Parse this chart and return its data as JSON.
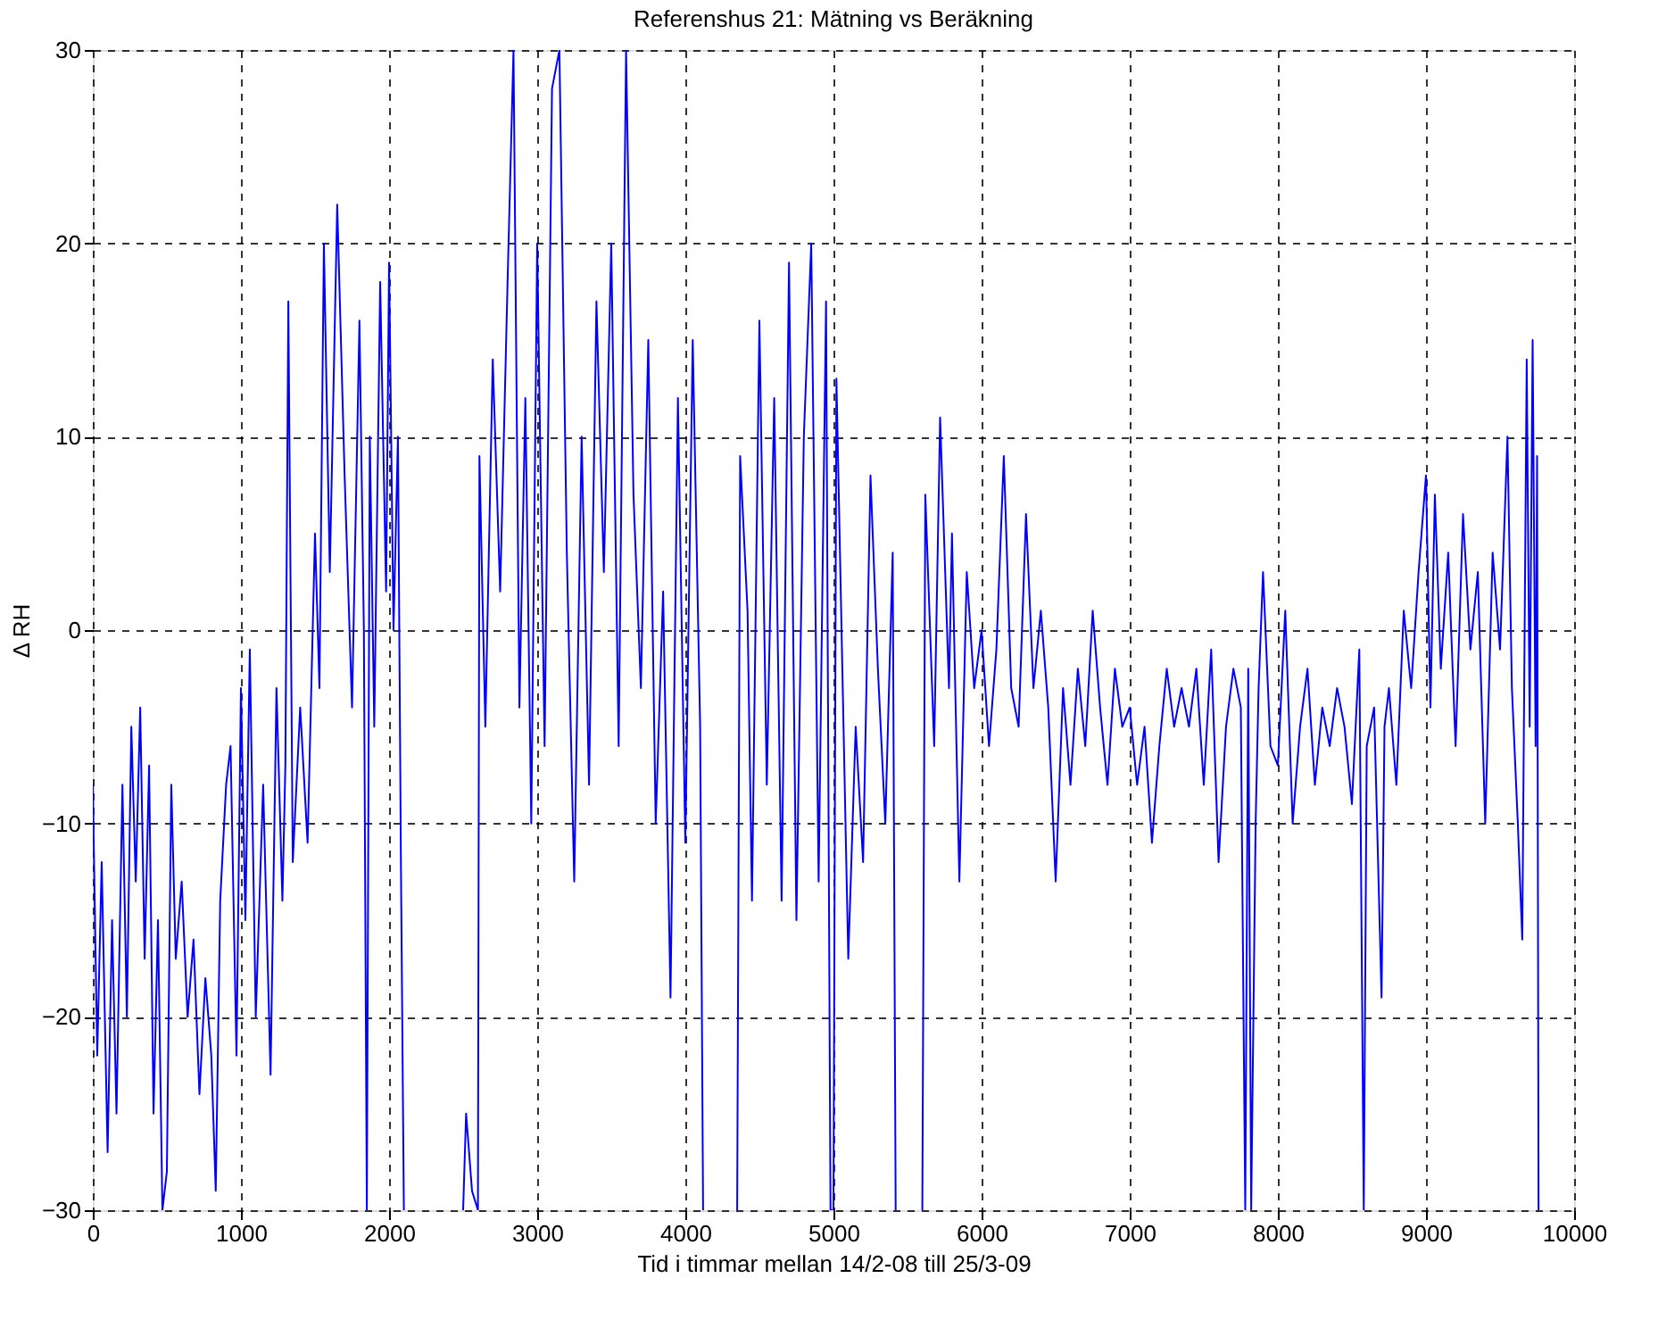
{
  "chart_data": {
    "type": "line",
    "title": "Referenshus 21: Mätning vs Beräkning",
    "xlabel": "Tid i timmar mellan 14/2-08 till 25/3-09",
    "ylabel": "Δ RH",
    "xlim": [
      0,
      10000
    ],
    "xticks": [
      0,
      1000,
      2000,
      3000,
      4000,
      5000,
      6000,
      7000,
      8000,
      9000,
      10000
    ],
    "ylim": [
      -30,
      30
    ],
    "yticks": [
      -30,
      -20,
      -10,
      0,
      10,
      20,
      30
    ],
    "grid": true,
    "line_style": "solid",
    "marker": "none",
    "series": [
      {
        "color": "#0000ff",
        "x": [
          0,
          30,
          60,
          100,
          130,
          160,
          200,
          230,
          260,
          290,
          320,
          350,
          380,
          410,
          440,
          470,
          500,
          530,
          560,
          600,
          640,
          680,
          720,
          760,
          800,
          830,
          860,
          900,
          930,
          970,
          1000,
          1030,
          1060,
          1100,
          1150,
          1200,
          1240,
          1280,
          1300,
          1320,
          1350,
          1400,
          1450,
          1500,
          1530,
          1560,
          1600,
          1650,
          1700,
          1750,
          1800,
          1830,
          1850,
          1870,
          1900,
          1940,
          1980,
          2000,
          2030,
          2060,
          2080,
          2100,
          2200,
          2500,
          2520,
          2560,
          2600,
          2610,
          2650,
          2700,
          2750,
          2800,
          2840,
          2880,
          2920,
          2960,
          3000,
          3050,
          3100,
          3150,
          3200,
          3250,
          3300,
          3350,
          3400,
          3450,
          3500,
          3550,
          3600,
          3650,
          3700,
          3750,
          3800,
          3850,
          3900,
          3950,
          4000,
          4050,
          4100,
          4120,
          4200,
          4350,
          4370,
          4420,
          4450,
          4500,
          4550,
          4600,
          4650,
          4700,
          4750,
          4800,
          4850,
          4900,
          4950,
          4980,
          5000,
          5020,
          5060,
          5100,
          5150,
          5200,
          5250,
          5300,
          5350,
          5400,
          5420,
          5500,
          5600,
          5620,
          5680,
          5720,
          5780,
          5800,
          5850,
          5900,
          5950,
          6000,
          6050,
          6100,
          6150,
          6200,
          6250,
          6300,
          6350,
          6400,
          6450,
          6500,
          6550,
          6600,
          6650,
          6700,
          6750,
          6800,
          6850,
          6900,
          6950,
          7000,
          7050,
          7100,
          7150,
          7200,
          7250,
          7300,
          7350,
          7400,
          7450,
          7500,
          7550,
          7600,
          7650,
          7700,
          7750,
          7780,
          7800,
          7820,
          7850,
          7870,
          7900,
          7950,
          8000,
          8050,
          8100,
          8150,
          8200,
          8250,
          8300,
          8350,
          8400,
          8450,
          8500,
          8550,
          8580,
          8600,
          8650,
          8700,
          8720,
          8750,
          8800,
          8850,
          8900,
          8950,
          9000,
          9030,
          9060,
          9100,
          9150,
          9200,
          9250,
          9300,
          9350,
          9400,
          9450,
          9500,
          9550,
          9580,
          9620,
          9650,
          9680,
          9700,
          9720,
          9740,
          9750,
          9760
        ],
        "values": [
          -8,
          -22,
          -12,
          -27,
          -15,
          -25,
          -8,
          -20,
          -5,
          -13,
          -4,
          -17,
          -7,
          -25,
          -15,
          -30,
          -28,
          -8,
          -17,
          -13,
          -20,
          -16,
          -24,
          -18,
          -22,
          -29,
          -14,
          -8,
          -6,
          -22,
          -3,
          -15,
          -1,
          -20,
          -8,
          -23,
          -3,
          -14,
          -7,
          17,
          -12,
          -4,
          -11,
          5,
          -3,
          20,
          3,
          22,
          8,
          -4,
          16,
          0,
          -30,
          10,
          -5,
          18,
          2,
          19,
          0,
          10,
          -12,
          -30,
          null,
          -30,
          -25,
          -29,
          -30,
          9,
          -5,
          14,
          2,
          18,
          30,
          -4,
          12,
          -10,
          20,
          -6,
          28,
          30,
          4,
          -13,
          10,
          -8,
          17,
          3,
          20,
          -6,
          30,
          7,
          -3,
          15,
          -10,
          2,
          -19,
          12,
          -11,
          15,
          -5,
          -30,
          null,
          -30,
          9,
          1,
          -14,
          16,
          -8,
          12,
          -14,
          19,
          -15,
          10,
          20,
          -13,
          17,
          -30,
          -30,
          13,
          -2,
          -17,
          -5,
          -12,
          8,
          -2,
          -10,
          4,
          -30,
          null,
          -30,
          7,
          -6,
          11,
          -3,
          5,
          -13,
          3,
          -3,
          0,
          -6,
          -1,
          9,
          -3,
          -5,
          6,
          -3,
          1,
          -4,
          -13,
          -3,
          -8,
          -2,
          -6,
          1,
          -4,
          -8,
          -2,
          -5,
          -4,
          -8,
          -5,
          -11,
          -6,
          -2,
          -5,
          -3,
          -5,
          -2,
          -8,
          -1,
          -12,
          -5,
          -2,
          -4,
          -30,
          -2,
          -30,
          -10,
          -3,
          3,
          -6,
          -7,
          1,
          -10,
          -5,
          -2,
          -8,
          -4,
          -6,
          -3,
          -5,
          -9,
          -1,
          -30,
          -6,
          -4,
          -19,
          -5,
          -3,
          -8,
          1,
          -3,
          3,
          8,
          -4,
          7,
          -2,
          4,
          -6,
          6,
          -1,
          3,
          -10,
          4,
          -1,
          10,
          -3,
          -10,
          -16,
          14,
          -5,
          15,
          -6,
          9,
          -30
        ]
      }
    ]
  }
}
